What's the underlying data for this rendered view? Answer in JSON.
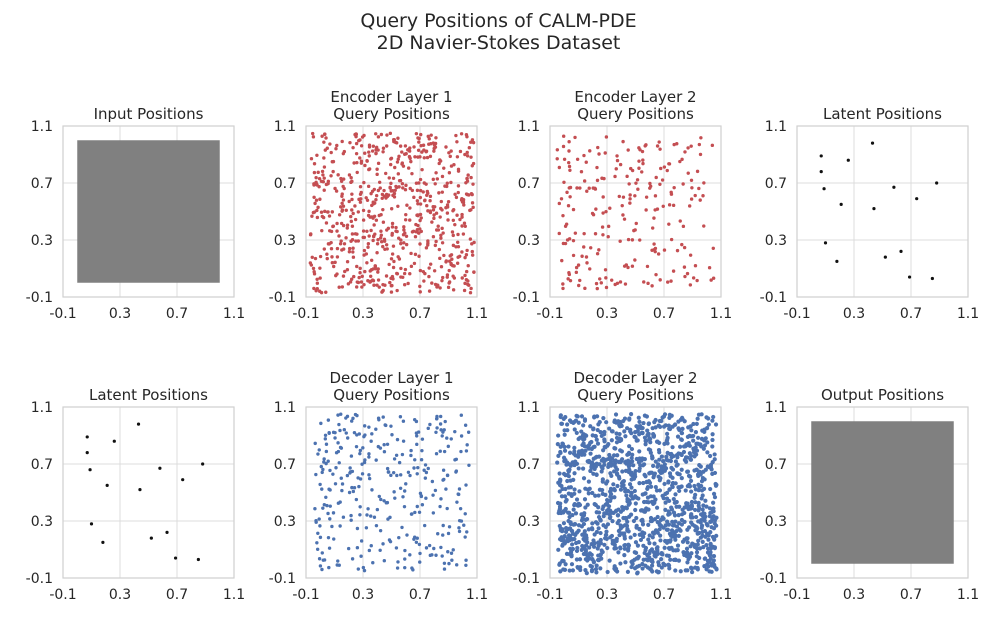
{
  "figure": {
    "title_line1": "Query Positions of CALM-PDE",
    "title_line2": "2D Navier-Stokes Dataset"
  },
  "colors": {
    "encoder": "#c44e52",
    "decoder": "#4c72b0",
    "latent": "#111111",
    "fill": "#808080",
    "grid": "#dcdcdc",
    "spine": "#cfcfcf"
  },
  "chart_data": [
    {
      "id": "input",
      "type": "scatter",
      "title": [
        "Input Positions"
      ],
      "series_kind": "filled",
      "fill_range": [
        0,
        1
      ],
      "xlim": [
        -0.1,
        1.1
      ],
      "ylim": [
        -0.1,
        1.1
      ],
      "ticks": [
        "-0.1",
        "0.3",
        "0.7",
        "1.1"
      ]
    },
    {
      "id": "enc1",
      "type": "scatter",
      "title": [
        "Encoder Layer 1",
        "Query Positions"
      ],
      "series_kind": "encoder",
      "n_points": 700,
      "dist": [
        -0.07,
        1.08,
        -0.07,
        1.05
      ],
      "seed": 11,
      "xlim": [
        -0.1,
        1.1
      ],
      "ylim": [
        -0.1,
        1.1
      ],
      "ticks": [
        "-0.1",
        "0.3",
        "0.7",
        "1.1"
      ]
    },
    {
      "id": "enc2",
      "type": "scatter",
      "title": [
        "Encoder Layer 2",
        "Query Positions"
      ],
      "series_kind": "encoder",
      "n_points": 230,
      "dist": [
        -0.05,
        1.05,
        -0.05,
        1.03
      ],
      "seed": 23,
      "xlim": [
        -0.1,
        1.1
      ],
      "ylim": [
        -0.1,
        1.1
      ],
      "ticks": [
        "-0.1",
        "0.3",
        "0.7",
        "1.1"
      ]
    },
    {
      "id": "lat1",
      "type": "scatter",
      "title": [
        "Latent Positions"
      ],
      "series_kind": "latent",
      "points": [
        [
          0.07,
          0.89
        ],
        [
          0.07,
          0.78
        ],
        [
          0.09,
          0.66
        ],
        [
          0.1,
          0.28
        ],
        [
          0.18,
          0.15
        ],
        [
          0.21,
          0.55
        ],
        [
          0.26,
          0.86
        ],
        [
          0.43,
          0.98
        ],
        [
          0.44,
          0.52
        ],
        [
          0.52,
          0.18
        ],
        [
          0.58,
          0.67
        ],
        [
          0.63,
          0.22
        ],
        [
          0.69,
          0.04
        ],
        [
          0.74,
          0.59
        ],
        [
          0.85,
          0.03
        ],
        [
          0.88,
          0.7
        ]
      ],
      "xlim": [
        -0.1,
        1.1
      ],
      "ylim": [
        -0.1,
        1.1
      ],
      "ticks": [
        "-0.1",
        "0.3",
        "0.7",
        "1.1"
      ]
    },
    {
      "id": "lat2",
      "type": "scatter",
      "title": [
        "Latent Positions"
      ],
      "series_kind": "latent",
      "points": [
        [
          0.07,
          0.89
        ],
        [
          0.07,
          0.78
        ],
        [
          0.09,
          0.66
        ],
        [
          0.1,
          0.28
        ],
        [
          0.18,
          0.15
        ],
        [
          0.21,
          0.55
        ],
        [
          0.26,
          0.86
        ],
        [
          0.43,
          0.98
        ],
        [
          0.44,
          0.52
        ],
        [
          0.52,
          0.18
        ],
        [
          0.58,
          0.67
        ],
        [
          0.63,
          0.22
        ],
        [
          0.69,
          0.04
        ],
        [
          0.74,
          0.59
        ],
        [
          0.85,
          0.03
        ],
        [
          0.88,
          0.7
        ]
      ],
      "xlim": [
        -0.1,
        1.1
      ],
      "ylim": [
        -0.1,
        1.1
      ],
      "ticks": [
        "-0.1",
        "0.3",
        "0.7",
        "1.1"
      ]
    },
    {
      "id": "dec1",
      "type": "scatter",
      "title": [
        "Decoder Layer 1",
        "Query Positions"
      ],
      "series_kind": "decoder",
      "n_points": 330,
      "dist": [
        -0.05,
        1.05,
        -0.05,
        1.05
      ],
      "seed": 37,
      "xlim": [
        -0.1,
        1.1
      ],
      "ylim": [
        -0.1,
        1.1
      ],
      "ticks": [
        "-0.1",
        "0.3",
        "0.7",
        "1.1"
      ]
    },
    {
      "id": "dec2",
      "type": "scatter",
      "title": [
        "Decoder Layer 2",
        "Query Positions"
      ],
      "series_kind": "decoder",
      "n_points": 1300,
      "dist": [
        -0.05,
        1.07,
        -0.07,
        1.05
      ],
      "seed": 53,
      "xlim": [
        -0.1,
        1.1
      ],
      "ylim": [
        -0.1,
        1.1
      ],
      "ticks": [
        "-0.1",
        "0.3",
        "0.7",
        "1.1"
      ]
    },
    {
      "id": "output",
      "type": "scatter",
      "title": [
        "Output Positions"
      ],
      "series_kind": "filled",
      "fill_range": [
        0,
        1
      ],
      "xlim": [
        -0.1,
        1.1
      ],
      "ylim": [
        -0.1,
        1.1
      ],
      "ticks": [
        "-0.1",
        "0.3",
        "0.7",
        "1.1"
      ]
    }
  ]
}
